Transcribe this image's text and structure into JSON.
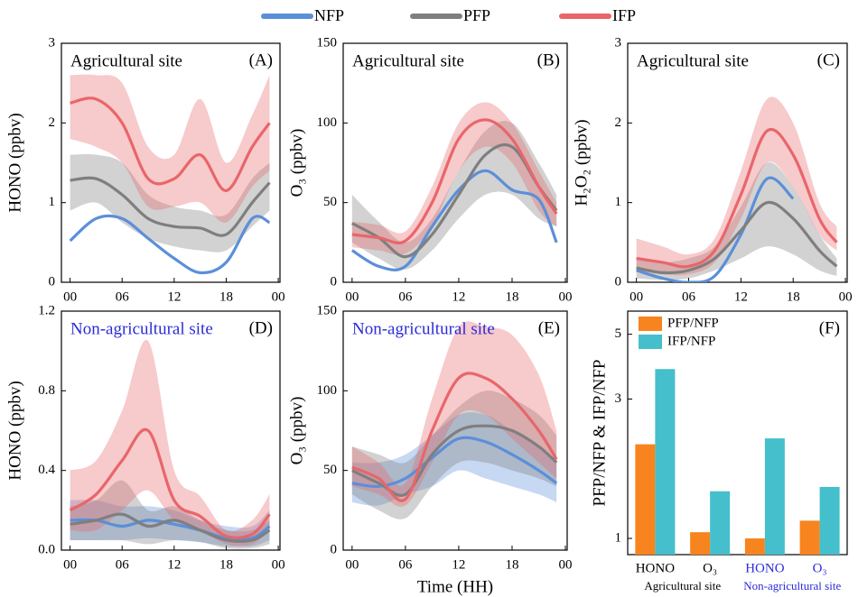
{
  "chart_data": [
    {
      "type": "line",
      "panel_label": "(A)",
      "annotation": "Agricultural site",
      "annotation_color": "#000000",
      "ylabel": "HONO (ppbv)",
      "x": [
        0,
        3,
        6,
        9,
        12,
        15,
        18,
        21,
        23
      ],
      "xlim": [
        -1,
        24.2
      ],
      "xticks": [
        {
          "value": 0,
          "label": "00"
        },
        {
          "value": 6,
          "label": "06"
        },
        12,
        18,
        {
          "value": 24,
          "label": "00"
        }
      ],
      "ylim": [
        0,
        3
      ],
      "yticks": [
        0,
        1,
        2,
        3
      ],
      "series": [
        {
          "name": "NFP",
          "color": "#5b8fd9",
          "values": [
            0.52,
            0.8,
            0.8,
            0.55,
            0.3,
            0.12,
            0.25,
            0.8,
            0.75
          ]
        },
        {
          "name": "PFP",
          "color": "#7f7f7f",
          "values": [
            1.28,
            1.3,
            1.1,
            0.8,
            0.7,
            0.68,
            0.6,
            1.0,
            1.25
          ],
          "lower": [
            0.9,
            1.0,
            0.75,
            0.55,
            0.45,
            0.4,
            0.4,
            0.7,
            0.9
          ],
          "upper": [
            1.6,
            1.6,
            1.5,
            1.1,
            0.95,
            0.9,
            0.85,
            1.3,
            1.5
          ]
        },
        {
          "name": "IFP",
          "color": "#e8666a",
          "values": [
            2.25,
            2.3,
            2.0,
            1.3,
            1.3,
            1.6,
            1.15,
            1.7,
            2.0
          ],
          "lower": [
            1.8,
            1.7,
            1.5,
            0.95,
            0.95,
            1.0,
            0.75,
            1.2,
            1.4
          ],
          "upper": [
            2.6,
            2.6,
            2.5,
            1.7,
            1.6,
            2.3,
            1.5,
            2.1,
            2.6
          ]
        }
      ]
    },
    {
      "type": "line",
      "panel_label": "(B)",
      "annotation": "Agricultural site",
      "annotation_color": "#000000",
      "ylabel": "O₃ (ppbv)",
      "x": [
        0,
        3,
        6,
        9,
        12,
        15,
        18,
        21,
        23
      ],
      "xlim": [
        -1,
        24.2
      ],
      "xticks": [
        {
          "value": 0,
          "label": "00"
        },
        {
          "value": 6,
          "label": "06"
        },
        12,
        18,
        {
          "value": 24,
          "label": "00"
        }
      ],
      "ylim": [
        0,
        150
      ],
      "yticks": [
        0,
        50,
        100,
        150
      ],
      "series": [
        {
          "color": "#5b8fd9",
          "values": [
            20,
            10,
            10,
            35,
            58,
            70,
            58,
            52,
            25
          ]
        },
        {
          "color": "#7f7f7f",
          "values": [
            37,
            28,
            16,
            30,
            55,
            80,
            85,
            60,
            45
          ],
          "lower": [
            25,
            15,
            8,
            20,
            40,
            55,
            55,
            40,
            35
          ],
          "upper": [
            55,
            38,
            25,
            40,
            70,
            95,
            100,
            75,
            55
          ]
        },
        {
          "color": "#e8666a",
          "values": [
            30,
            28,
            26,
            50,
            90,
            102,
            90,
            60,
            43
          ],
          "lower": [
            22,
            20,
            18,
            35,
            70,
            85,
            75,
            45,
            35
          ],
          "upper": [
            38,
            36,
            32,
            60,
            100,
            113,
            100,
            70,
            50
          ]
        }
      ]
    },
    {
      "type": "line",
      "panel_label": "(C)",
      "annotation": "Agricultural site",
      "annotation_color": "#000000",
      "ylabel": "H₂O₂ (ppbv)",
      "x": [
        0,
        3,
        6,
        9,
        12,
        15,
        18,
        21,
        23
      ],
      "xlim": [
        -1,
        24.2
      ],
      "xticks": [
        {
          "value": 0,
          "label": "00"
        },
        {
          "value": 6,
          "label": "06"
        },
        12,
        18,
        {
          "value": 24,
          "label": "00"
        }
      ],
      "ylim": [
        0,
        3
      ],
      "yticks": [
        0,
        1,
        2,
        3
      ],
      "series": [
        {
          "color": "#5b8fd9",
          "values": [
            0.15,
            0.05,
            0.0,
            0.08,
            0.6,
            1.3,
            1.05,
            null,
            null
          ]
        },
        {
          "color": "#7f7f7f",
          "values": [
            0.18,
            0.12,
            0.15,
            0.3,
            0.65,
            1.0,
            0.8,
            0.4,
            0.2
          ],
          "lower": [
            0.05,
            0.03,
            0.05,
            0.15,
            0.3,
            0.45,
            0.35,
            0.15,
            0.08
          ],
          "upper": [
            0.3,
            0.25,
            0.3,
            0.45,
            0.95,
            1.5,
            1.2,
            0.6,
            0.3
          ]
        },
        {
          "color": "#e8666a",
          "values": [
            0.3,
            0.25,
            0.2,
            0.4,
            1.1,
            1.9,
            1.6,
            0.8,
            0.5
          ],
          "lower": [
            0.15,
            0.1,
            0.1,
            0.25,
            0.8,
            1.5,
            1.2,
            0.6,
            0.4
          ],
          "upper": [
            0.55,
            0.45,
            0.35,
            0.55,
            1.4,
            2.3,
            2.0,
            1.0,
            0.7
          ]
        }
      ]
    },
    {
      "type": "line",
      "panel_label": "(D)",
      "annotation": "Non-agricultural site",
      "annotation_color": "#2b2bd9",
      "ylabel": "HONO (ppbv)",
      "x": [
        0,
        3,
        6,
        9,
        12,
        15,
        18,
        21,
        23
      ],
      "xlim": [
        -1,
        24.2
      ],
      "xticks": [
        {
          "value": 0,
          "label": "00"
        },
        {
          "value": 6,
          "label": "06"
        },
        12,
        18,
        {
          "value": 24,
          "label": "00"
        }
      ],
      "ylim": [
        0,
        1.2
      ],
      "yticks": [
        {
          "value": 0,
          "label": "0.0"
        },
        0.4,
        0.8,
        1.2
      ],
      "series": [
        {
          "color": "#5b8fd9",
          "values": [
            0.15,
            0.15,
            0.12,
            0.15,
            0.13,
            0.1,
            0.06,
            0.06,
            0.12
          ],
          "lower": [
            0.05,
            0.05,
            0.05,
            0.06,
            0.05,
            0.04,
            0.02,
            0.02,
            0.05
          ],
          "upper": [
            0.25,
            0.25,
            0.22,
            0.22,
            0.2,
            0.15,
            0.12,
            0.12,
            0.2
          ]
        },
        {
          "color": "#7f7f7f",
          "values": [
            0.13,
            0.15,
            0.18,
            0.12,
            0.15,
            0.1,
            0.05,
            0.05,
            0.1
          ],
          "lower": [
            0.05,
            0.05,
            0.05,
            0.03,
            0.05,
            0.04,
            0.01,
            0.01,
            0.03
          ],
          "upper": [
            0.22,
            0.25,
            0.35,
            0.2,
            0.22,
            0.15,
            0.1,
            0.1,
            0.15
          ]
        },
        {
          "color": "#e8666a",
          "values": [
            0.2,
            0.28,
            0.45,
            0.6,
            0.25,
            0.17,
            0.07,
            0.08,
            0.18
          ],
          "lower": [
            0.1,
            0.1,
            0.2,
            0.3,
            0.15,
            0.1,
            0.03,
            0.03,
            0.1
          ],
          "upper": [
            0.4,
            0.45,
            0.7,
            1.05,
            0.4,
            0.27,
            0.1,
            0.15,
            0.28
          ]
        }
      ]
    },
    {
      "type": "line",
      "panel_label": "(E)",
      "annotation": "Non-agricultural site",
      "annotation_color": "#2b2bd9",
      "ylabel": "O₃ (ppbv)",
      "xlabel": "Time (HH)",
      "x": [
        0,
        3,
        6,
        9,
        12,
        15,
        18,
        21,
        23
      ],
      "xlim": [
        -1,
        24.2
      ],
      "xticks": [
        {
          "value": 0,
          "label": "00"
        },
        {
          "value": 6,
          "label": "06"
        },
        12,
        18,
        {
          "value": 24,
          "label": "00"
        }
      ],
      "ylim": [
        0,
        150
      ],
      "yticks": [
        0,
        50,
        100,
        150
      ],
      "series": [
        {
          "color": "#5b8fd9",
          "values": [
            42,
            40,
            45,
            58,
            70,
            68,
            60,
            50,
            42
          ],
          "lower": [
            30,
            28,
            35,
            40,
            50,
            45,
            40,
            35,
            30
          ],
          "upper": [
            55,
            55,
            60,
            72,
            85,
            85,
            75,
            65,
            55
          ]
        },
        {
          "color": "#7f7f7f",
          "values": [
            50,
            42,
            35,
            60,
            75,
            78,
            75,
            65,
            55
          ],
          "lower": [
            35,
            25,
            20,
            40,
            55,
            55,
            50,
            45,
            40
          ],
          "upper": [
            65,
            60,
            55,
            72,
            90,
            100,
            95,
            85,
            72
          ]
        },
        {
          "color": "#e8666a",
          "values": [
            52,
            45,
            32,
            75,
            108,
            108,
            95,
            75,
            57
          ],
          "lower": [
            40,
            35,
            28,
            55,
            85,
            85,
            70,
            55,
            45
          ],
          "upper": [
            65,
            55,
            42,
            95,
            140,
            140,
            135,
            110,
            75
          ]
        }
      ]
    },
    {
      "type": "bar",
      "panel_label": "(F)",
      "ylabel": "PFP/NFP  &  IFP/NFP",
      "log_scale": true,
      "legend": "upper left",
      "categories": [
        "HONO",
        "O₃",
        "HONO",
        "O₃"
      ],
      "category_label_colors": [
        "#000000",
        "#000000",
        "#2b2bd9",
        "#2b2bd9"
      ],
      "groups": [
        "Agricultural site",
        "Non-agricultural site"
      ],
      "group_label_colors": [
        "#000000",
        "#2b2bd9"
      ],
      "ylim": [
        0.88,
        6
      ],
      "yticks": [
        1,
        3,
        5
      ],
      "series": [
        {
          "name": "PFP/NFP",
          "color": "#f7841e",
          "values": [
            2.1,
            1.05,
            1.0,
            1.15
          ]
        },
        {
          "name": "IFP/NFP",
          "color": "#45bfcc",
          "values": [
            3.8,
            1.45,
            2.2,
            1.5
          ]
        }
      ]
    }
  ]
}
